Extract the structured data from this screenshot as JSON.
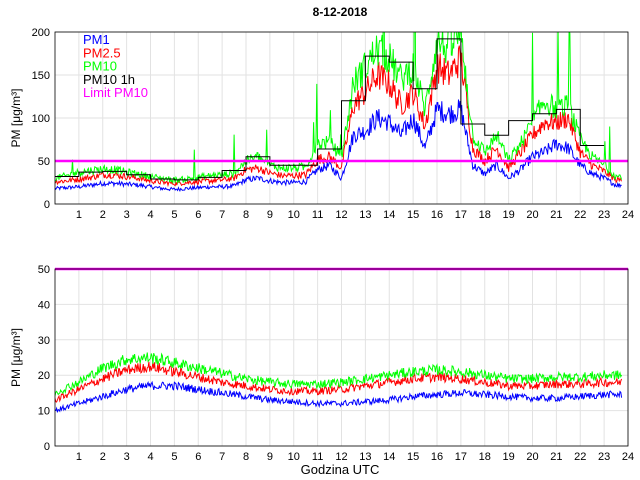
{
  "chart_data": [
    {
      "type": "line",
      "title": "8-12-2018",
      "ylabel": "PM [μg/m³]",
      "xlabel": "",
      "xlim": [
        0,
        24
      ],
      "ylim": [
        0,
        200
      ],
      "yticks": [
        0,
        50,
        100,
        150,
        200
      ],
      "xticks": [
        1,
        2,
        3,
        4,
        5,
        6,
        7,
        8,
        9,
        10,
        11,
        12,
        13,
        14,
        15,
        16,
        17,
        18,
        19,
        20,
        21,
        22,
        23,
        24
      ],
      "grid": true,
      "legend_position": "top-left",
      "limit": {
        "name": "Limit PM10",
        "value": 50,
        "color": "#ff00ff"
      },
      "anchor_step_hours": 0.5,
      "series": [
        {
          "name": "PM1",
          "color": "#0000ff",
          "values": [
            18,
            19,
            20,
            22,
            24,
            24,
            23,
            22,
            20,
            18,
            17,
            18,
            19,
            20,
            20,
            21,
            28,
            30,
            27,
            25,
            25,
            26,
            40,
            45,
            30,
            80,
            85,
            100,
            95,
            80,
            100,
            65,
            110,
            105,
            110,
            45,
            35,
            45,
            30,
            40,
            55,
            60,
            70,
            65,
            45,
            35,
            30,
            22
          ]
        },
        {
          "name": "PM2.5",
          "color": "#ff0000",
          "values": [
            26,
            27,
            29,
            31,
            34,
            34,
            32,
            30,
            27,
            25,
            24,
            25,
            26,
            27,
            28,
            30,
            40,
            42,
            36,
            33,
            33,
            34,
            52,
            55,
            42,
            115,
            130,
            150,
            140,
            115,
            130,
            90,
            160,
            150,
            170,
            65,
            50,
            65,
            42,
            60,
            80,
            95,
            95,
            100,
            60,
            45,
            38,
            28
          ]
        },
        {
          "name": "PM10",
          "color": "#00ff00",
          "values": [
            30,
            33,
            37,
            39,
            41,
            40,
            37,
            35,
            32,
            30,
            28,
            29,
            31,
            33,
            34,
            36,
            50,
            55,
            45,
            42,
            42,
            43,
            70,
            72,
            55,
            140,
            160,
            180,
            170,
            145,
            160,
            110,
            190,
            180,
            200,
            80,
            60,
            80,
            50,
            70,
            95,
            120,
            110,
            115,
            75,
            55,
            45,
            32
          ]
        },
        {
          "name": "PM10 1h",
          "color": "#000000",
          "step": true,
          "values": [
            32,
            37,
            38,
            34,
            29,
            28,
            31,
            39,
            55,
            45,
            45,
            64,
            120,
            172,
            165,
            134,
            192,
            93,
            80,
            97,
            105,
            110,
            68
          ]
        }
      ]
    },
    {
      "type": "line",
      "title": "",
      "ylabel": "PM [μg/m³]",
      "xlabel": "Godzina UTC",
      "xlim": [
        0,
        24
      ],
      "ylim": [
        0,
        50
      ],
      "yticks": [
        0,
        10,
        20,
        30,
        40,
        50
      ],
      "xticks": [
        1,
        2,
        3,
        4,
        5,
        6,
        7,
        8,
        9,
        10,
        11,
        12,
        13,
        14,
        15,
        16,
        17,
        18,
        19,
        20,
        21,
        22,
        23,
        24
      ],
      "grid": true,
      "limit": {
        "name": "Limit PM10",
        "value": 50,
        "color": "#ff00ff"
      },
      "anchor_step_hours": 1,
      "series": [
        {
          "name": "PM1",
          "color": "#0000ff",
          "values": [
            10,
            12,
            14,
            16,
            17,
            17,
            16,
            15,
            14,
            13,
            12.5,
            12,
            12,
            12.5,
            13,
            14,
            14.5,
            15,
            14.5,
            14,
            13.5,
            13.5,
            14,
            14.5
          ]
        },
        {
          "name": "PM2.5",
          "color": "#ff0000",
          "values": [
            13,
            16,
            19,
            21.5,
            22.5,
            21,
            19.5,
            18,
            17,
            16,
            15.5,
            15.5,
            16,
            17,
            18,
            19,
            19.5,
            19,
            18,
            17,
            17,
            17.5,
            17.5,
            18
          ]
        },
        {
          "name": "PM10",
          "color": "#00ff00",
          "values": [
            15,
            18,
            22,
            24.5,
            25,
            23.5,
            22,
            20.5,
            19,
            18,
            17.5,
            17.5,
            18,
            19,
            20,
            21,
            21.5,
            21,
            20,
            19,
            19,
            19.5,
            19.5,
            20
          ]
        }
      ]
    }
  ]
}
